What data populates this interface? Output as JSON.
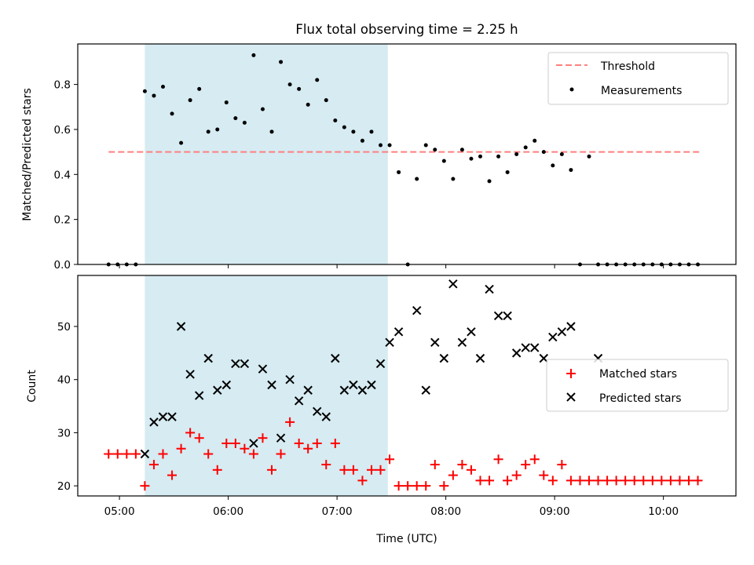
{
  "figure": {
    "title": "Flux total observing time = 2.25 h",
    "x_label": "Time (UTC)",
    "x_tick_labels": [
      "05:00",
      "06:00",
      "07:00",
      "08:00",
      "09:00",
      "10:00"
    ]
  },
  "colors": {
    "shading": "#add8e6",
    "threshold": "#ff7f7f",
    "measurements": "#000000",
    "matched": "#ff0000",
    "predicted": "#000000"
  },
  "chart_data": [
    {
      "type": "scatter",
      "panel": "top",
      "ylabel": "Matched/Predicted stars",
      "xlim": [
        "04:37",
        "10:40"
      ],
      "ylim": [
        0,
        0.98
      ],
      "y_ticks": [
        0,
        0.2,
        0.4,
        0.6,
        0.8
      ],
      "y_tick_labels": [
        "0.0",
        "0.2",
        "0.4",
        "0.6",
        "0.8"
      ],
      "grid": false,
      "legend_position": "top-right",
      "shaded_interval": [
        "05:14",
        "07:28"
      ],
      "threshold": {
        "name": "Threshold",
        "y": 0.5,
        "x_range": [
          "04:54",
          "10:21"
        ],
        "style": "dashed"
      },
      "series": [
        {
          "name": "Measurements",
          "x": [
            "04:54",
            "04:59",
            "05:04",
            "05:09",
            "05:14",
            "05:19",
            "05:24",
            "05:29",
            "05:34",
            "05:39",
            "05:44",
            "05:49",
            "05:54",
            "05:59",
            "06:04",
            "06:09",
            "06:14",
            "06:19",
            "06:24",
            "06:29",
            "06:34",
            "06:39",
            "06:44",
            "06:49",
            "06:54",
            "06:59",
            "07:04",
            "07:09",
            "07:14",
            "07:19",
            "07:24",
            "07:29",
            "07:34",
            "07:39",
            "07:44",
            "07:49",
            "07:54",
            "07:59",
            "08:04",
            "08:09",
            "08:14",
            "08:19",
            "08:24",
            "08:29",
            "08:34",
            "08:39",
            "08:44",
            "08:49",
            "08:54",
            "08:59",
            "09:04",
            "09:09",
            "09:14",
            "09:19",
            "09:24",
            "09:29",
            "09:34",
            "09:39",
            "09:44",
            "09:49",
            "09:54",
            "09:59",
            "10:04",
            "10:09",
            "10:14",
            "10:19"
          ],
          "y": [
            0,
            0,
            0,
            0,
            0.77,
            0.75,
            0.79,
            0.67,
            0.54,
            0.73,
            0.78,
            0.59,
            0.6,
            0.72,
            0.65,
            0.63,
            0.93,
            0.69,
            0.59,
            0.9,
            0.8,
            0.78,
            0.71,
            0.82,
            0.73,
            0.64,
            0.61,
            0.59,
            0.55,
            0.59,
            0.53,
            0.53,
            0.41,
            0,
            0.38,
            0.53,
            0.51,
            0.46,
            0.38,
            0.51,
            0.47,
            0.48,
            0.37,
            0.48,
            0.41,
            0.49,
            0.52,
            0.55,
            0.5,
            0.44,
            0.49,
            0.42,
            0,
            0.48,
            0,
            0,
            0,
            0,
            0,
            0,
            0,
            0,
            0,
            0,
            0,
            0
          ]
        }
      ]
    },
    {
      "type": "scatter",
      "panel": "bottom",
      "ylabel": "Count",
      "xlabel": "Time (UTC)",
      "xlim": [
        "04:37",
        "10:40"
      ],
      "ylim": [
        18.1,
        59.6
      ],
      "y_ticks": [
        20,
        30,
        40,
        50
      ],
      "y_tick_labels": [
        "20",
        "30",
        "40",
        "50"
      ],
      "grid": false,
      "legend_position": "center-right",
      "shaded_interval": [
        "05:14",
        "07:28"
      ],
      "series": [
        {
          "name": "Matched stars",
          "marker": "plus",
          "x": [
            "04:54",
            "04:59",
            "05:04",
            "05:09",
            "05:14",
            "05:19",
            "05:24",
            "05:29",
            "05:34",
            "05:39",
            "05:44",
            "05:49",
            "05:54",
            "05:59",
            "06:04",
            "06:09",
            "06:14",
            "06:19",
            "06:24",
            "06:29",
            "06:34",
            "06:39",
            "06:44",
            "06:49",
            "06:54",
            "06:59",
            "07:04",
            "07:09",
            "07:14",
            "07:19",
            "07:24",
            "07:29",
            "07:34",
            "07:39",
            "07:44",
            "07:49",
            "07:54",
            "07:59",
            "08:04",
            "08:09",
            "08:14",
            "08:19",
            "08:24",
            "08:29",
            "08:34",
            "08:39",
            "08:44",
            "08:49",
            "08:54",
            "08:59",
            "09:04",
            "09:09",
            "09:14",
            "09:19",
            "09:24",
            "09:29",
            "09:34",
            "09:39",
            "09:44",
            "09:49",
            "09:54",
            "09:59",
            "10:04",
            "10:09",
            "10:14",
            "10:19"
          ],
          "y": [
            26,
            26,
            26,
            26,
            20,
            24,
            26,
            22,
            27,
            30,
            29,
            26,
            23,
            28,
            28,
            27,
            26,
            29,
            23,
            26,
            32,
            28,
            27,
            28,
            24,
            28,
            23,
            23,
            21,
            23,
            23,
            25,
            20,
            20,
            20,
            20,
            24,
            20,
            22,
            24,
            23,
            21,
            21,
            25,
            21,
            22,
            24,
            25,
            22,
            21,
            24,
            21,
            21,
            21,
            21,
            21,
            21,
            21,
            21,
            21,
            21,
            21,
            21,
            21,
            21,
            21
          ]
        },
        {
          "name": "Predicted stars",
          "marker": "x",
          "x": [
            "05:14",
            "05:19",
            "05:24",
            "05:29",
            "05:34",
            "05:39",
            "05:44",
            "05:49",
            "05:54",
            "05:59",
            "06:04",
            "06:09",
            "06:14",
            "06:19",
            "06:24",
            "06:29",
            "06:34",
            "06:39",
            "06:44",
            "06:49",
            "06:54",
            "06:59",
            "07:04",
            "07:09",
            "07:14",
            "07:19",
            "07:24",
            "07:29",
            "07:34",
            "07:44",
            "07:49",
            "07:54",
            "07:59",
            "08:04",
            "08:09",
            "08:14",
            "08:19",
            "08:24",
            "08:29",
            "08:34",
            "08:39",
            "08:44",
            "08:49",
            "08:54",
            "08:59",
            "09:04",
            "09:09",
            "09:24"
          ],
          "y": [
            26,
            32,
            33,
            33,
            50,
            41,
            37,
            44,
            38,
            39,
            43,
            43,
            28,
            42,
            39,
            29,
            40,
            36,
            38,
            34,
            33,
            44,
            38,
            39,
            38,
            39,
            43,
            47,
            49,
            53,
            38,
            47,
            44,
            58,
            47,
            49,
            44,
            57,
            52,
            52,
            45,
            46,
            46,
            44,
            48,
            49,
            50,
            44
          ]
        }
      ]
    }
  ]
}
